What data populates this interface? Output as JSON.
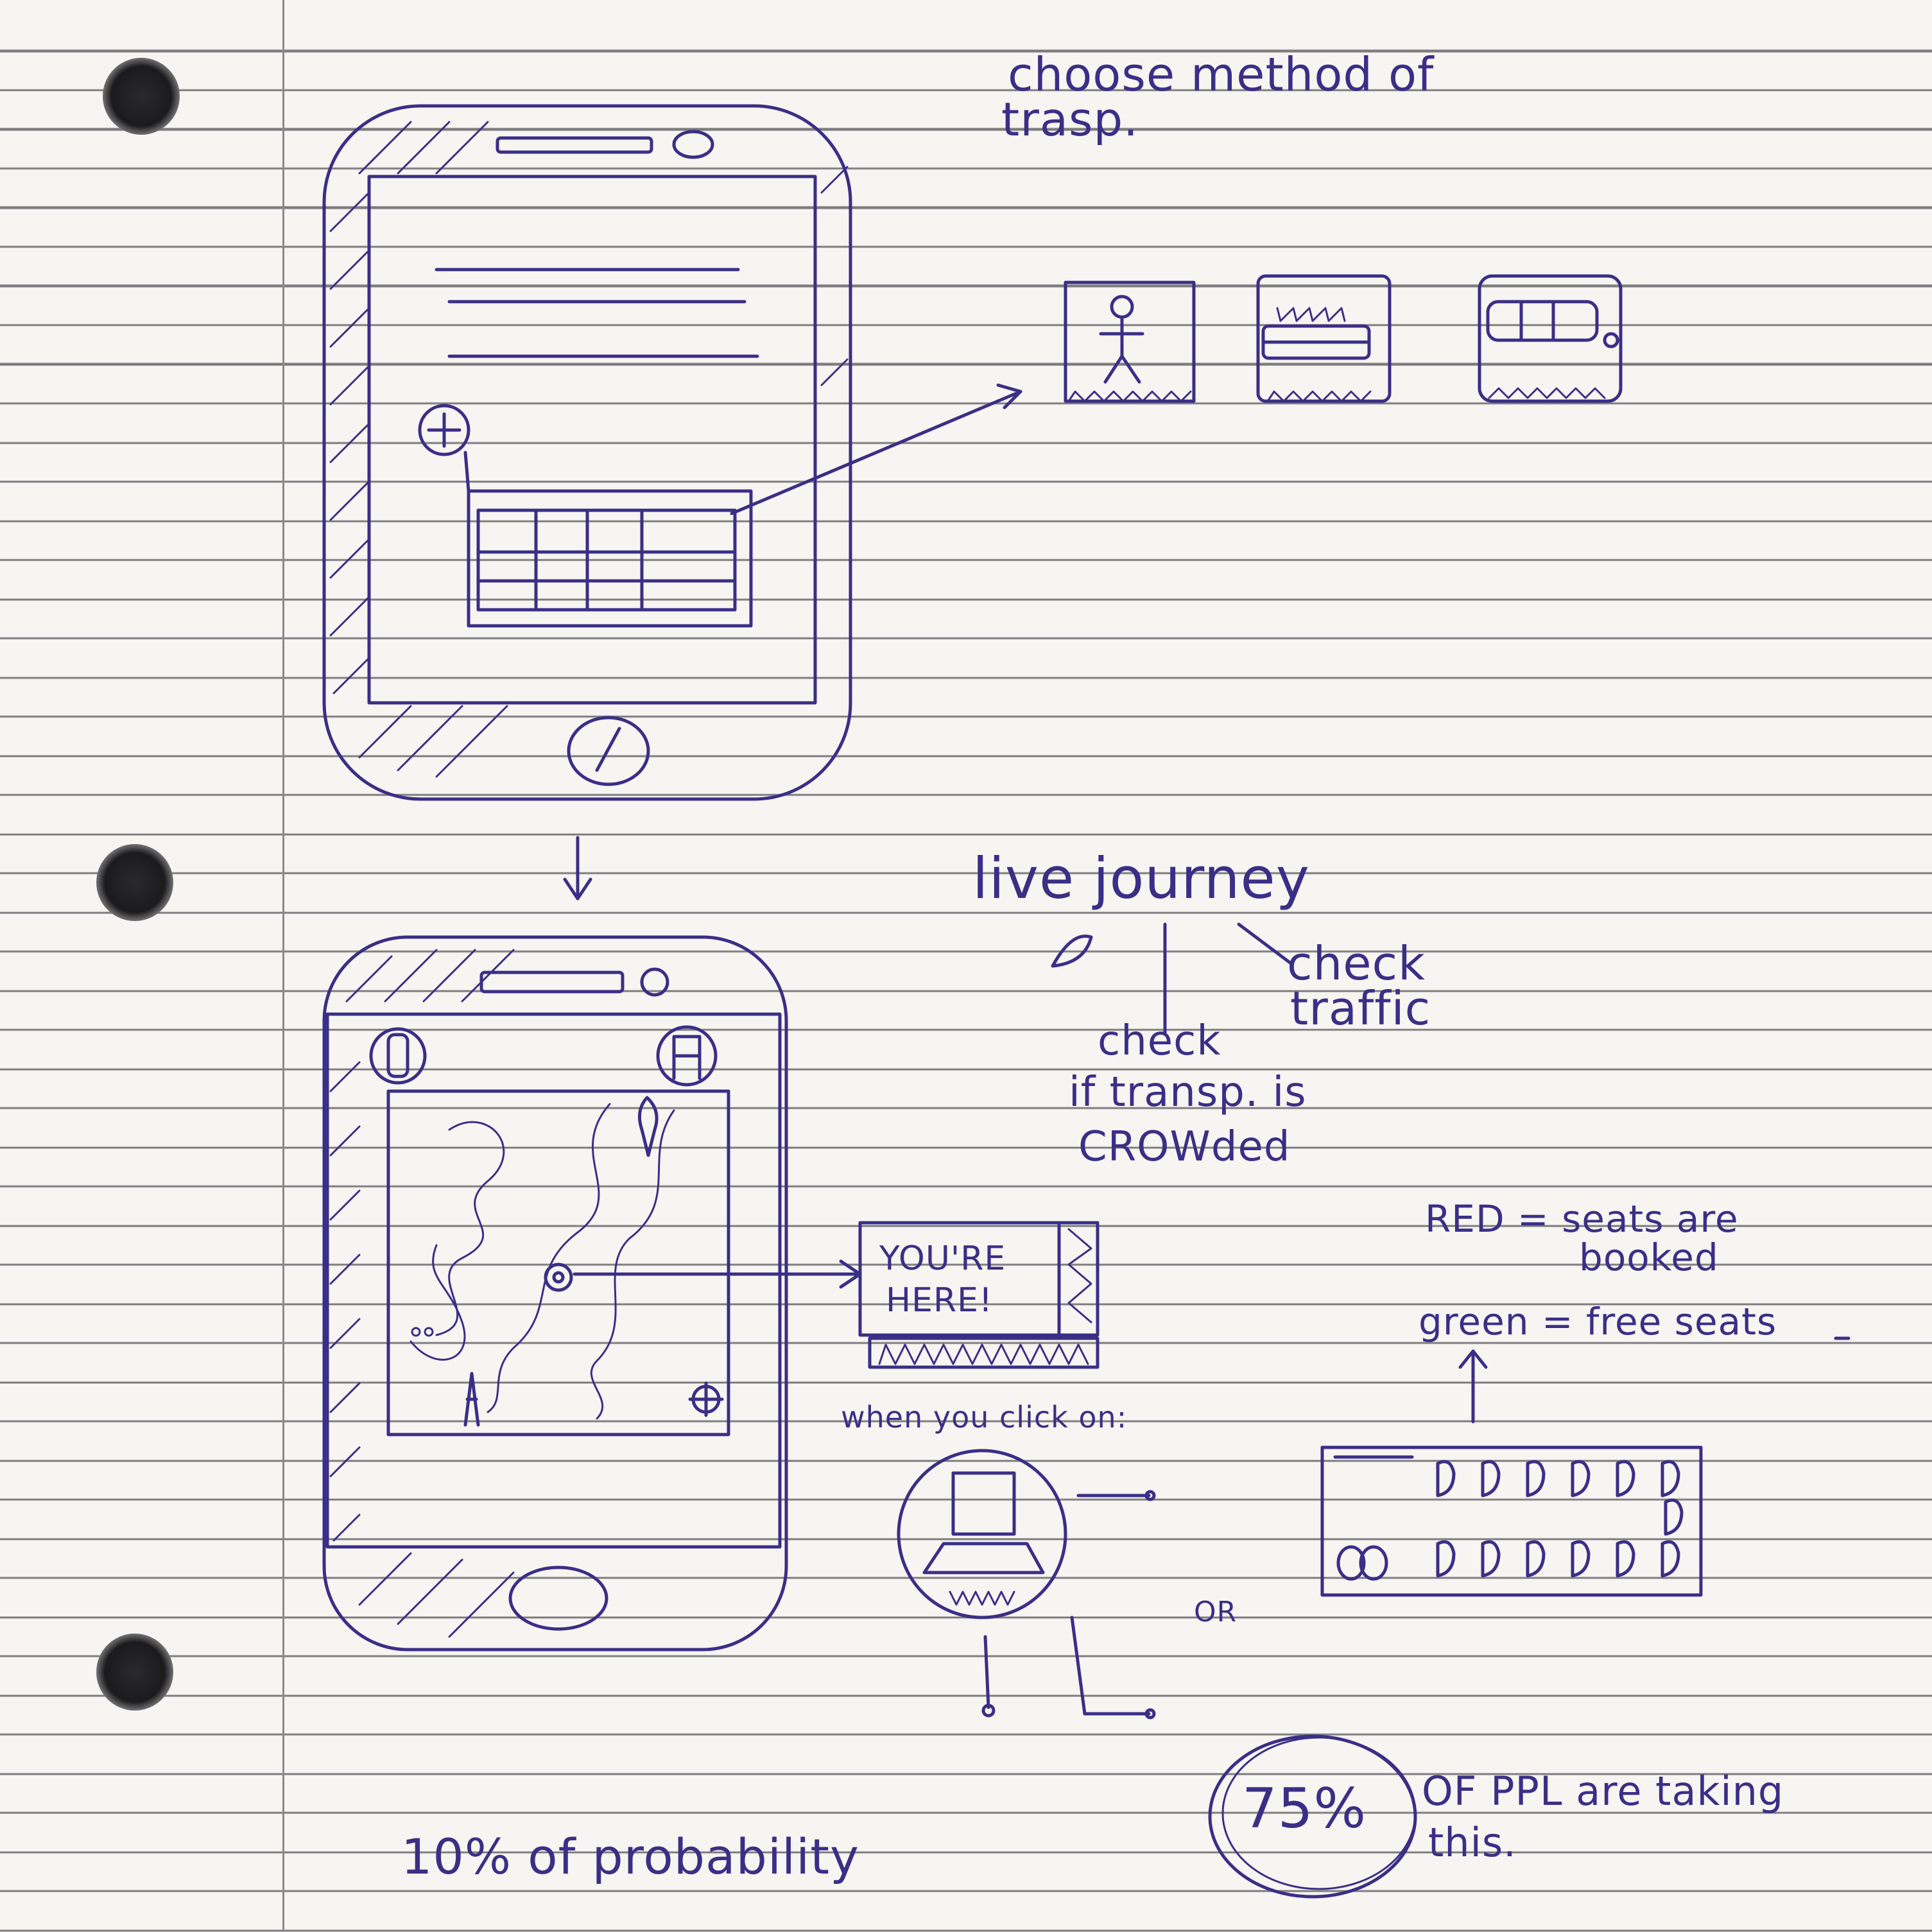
{
  "notes": {
    "choose_method_line1": "choose method of",
    "choose_method_line2": "trasp.",
    "live_journey": "live journey",
    "check_traffic_line1": "check",
    "check_traffic_line2": "traffic",
    "check_crowded_line1": "check",
    "check_crowded_line2": "if transp. is",
    "check_crowded_line3": "CROWded",
    "youre_here_line1": "YOU'RE",
    "youre_here_line2": "HERE!",
    "when_you_click": "when you click on:",
    "red_line1": "RED = seats are",
    "red_line2": "booked",
    "green_line": "green = free seats",
    "or_label": "OR",
    "bottom_left": "10% of probability",
    "percent_value": "75%",
    "ppl_line1": "OF PPL are taking",
    "ppl_line2": "this."
  },
  "icons": {
    "walk_option": "walking-person-icon",
    "train_option": "train-icon",
    "bus_option": "bus-icon",
    "plus_button": "plus-icon",
    "location_pin": "map-pin-icon",
    "current_location": "current-location-icon",
    "seat_button": "seat-icon",
    "traffic_light": "traffic-light-icon",
    "crosshair": "crosshair-icon"
  },
  "colors": {
    "ink": "#3a2f86",
    "paper": "#f7f5f1",
    "rule_lines": "#7b7b7d"
  }
}
